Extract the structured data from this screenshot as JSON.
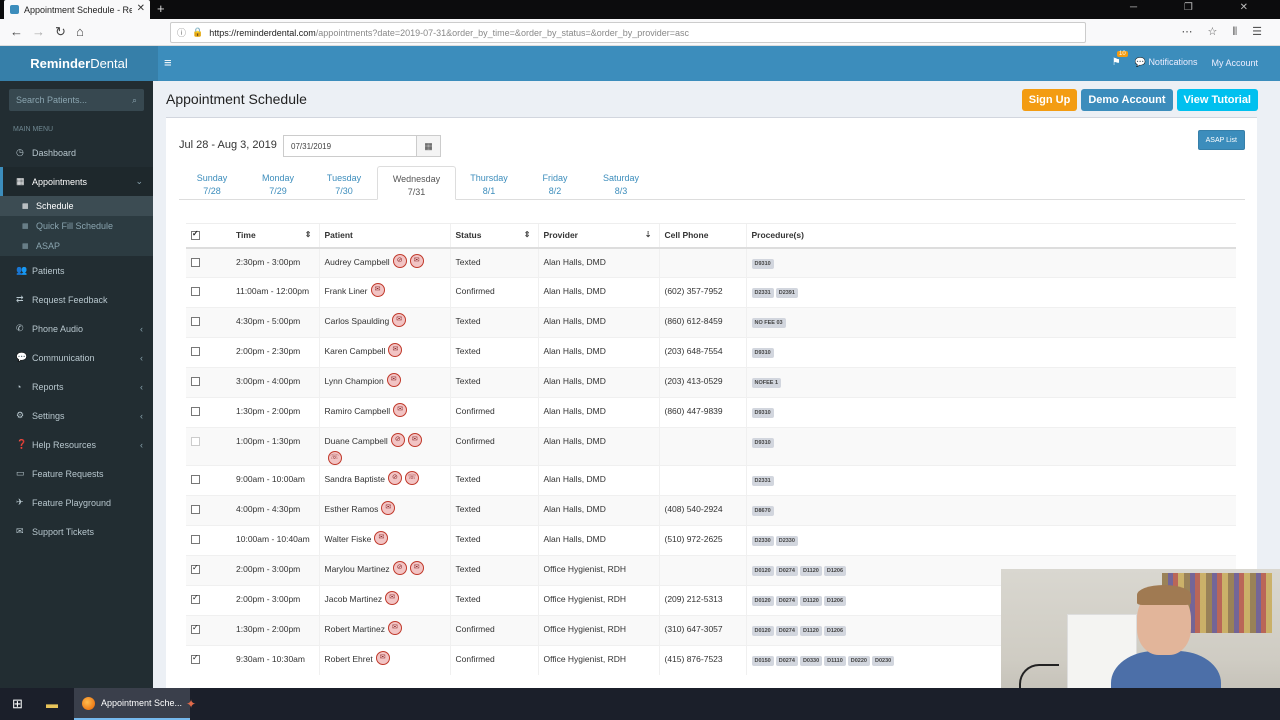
{
  "browser": {
    "tab_title": "Appointment Schedule - Reminder",
    "url_host": "https://reminderdental.com",
    "url_path": "/appointments?date=2019-07-31&order_by_time=&order_by_status=&order_by_provider=asc"
  },
  "header": {
    "logo_bold": "Reminder",
    "logo_normal": "Dental",
    "notifications": "Notifications",
    "my_account": "My Account",
    "flag_badge": "10"
  },
  "sidebar": {
    "search_placeholder": "Search Patients...",
    "main_menu": "MAIN MENU",
    "items": [
      {
        "label": "Dashboard"
      },
      {
        "label": "Appointments"
      },
      {
        "label": "Patients"
      },
      {
        "label": "Request Feedback"
      },
      {
        "label": "Phone Audio"
      },
      {
        "label": "Communication"
      },
      {
        "label": "Reports"
      },
      {
        "label": "Settings"
      },
      {
        "label": "Help Resources"
      },
      {
        "label": "Feature Requests"
      },
      {
        "label": "Feature Playground"
      },
      {
        "label": "Support Tickets"
      }
    ],
    "sub_items": [
      {
        "label": "Schedule"
      },
      {
        "label": "Quick Fill Schedule"
      },
      {
        "label": "ASAP"
      }
    ]
  },
  "main": {
    "title": "Appointment Schedule",
    "buttons": {
      "sign_up": "Sign Up",
      "demo": "Demo Account",
      "tutorial": "View Tutorial",
      "asap": "ASAP List"
    },
    "week_range": "Jul 28 - Aug 3, 2019",
    "date_value": "07/31/2019",
    "days": [
      {
        "name": "Sunday",
        "date": "7/28"
      },
      {
        "name": "Monday",
        "date": "7/29"
      },
      {
        "name": "Tuesday",
        "date": "7/30"
      },
      {
        "name": "Wednesday",
        "date": "7/31"
      },
      {
        "name": "Thursday",
        "date": "8/1"
      },
      {
        "name": "Friday",
        "date": "8/2"
      },
      {
        "name": "Saturday",
        "date": "8/3"
      }
    ],
    "columns": {
      "time": "Time",
      "patient": "Patient",
      "status": "Status",
      "provider": "Provider",
      "cell": "Cell Phone",
      "procedures": "Procedure(s)"
    },
    "rows": [
      {
        "checked": false,
        "time": "2:30pm - 3:00pm",
        "patient": "Audrey Campbell",
        "icons": [
          "no-text",
          "mail"
        ],
        "status": "Texted",
        "provider": "Alan Halls, DMD",
        "cell": "",
        "procedures": [
          "D9310"
        ]
      },
      {
        "checked": false,
        "time": "11:00am - 12:00pm",
        "patient": "Frank Liner",
        "icons": [
          "mail"
        ],
        "status": "Confirmed",
        "provider": "Alan Halls, DMD",
        "cell": "(602) 357-7952",
        "procedures": [
          "D2331",
          "D2391"
        ]
      },
      {
        "checked": false,
        "time": "4:30pm - 5:00pm",
        "patient": "Carlos Spaulding",
        "icons": [
          "mail"
        ],
        "status": "Texted",
        "provider": "Alan Halls, DMD",
        "cell": "(860) 612-8459",
        "procedures": [
          "NO FEE 03"
        ]
      },
      {
        "checked": false,
        "time": "2:00pm - 2:30pm",
        "patient": "Karen Campbell",
        "icons": [
          "mail"
        ],
        "status": "Texted",
        "provider": "Alan Halls, DMD",
        "cell": "(203) 648-7554",
        "procedures": [
          "D9310"
        ]
      },
      {
        "checked": false,
        "time": "3:00pm - 4:00pm",
        "patient": "Lynn Champion",
        "icons": [
          "mail"
        ],
        "status": "Texted",
        "provider": "Alan Halls, DMD",
        "cell": "(203) 413-0529",
        "procedures": [
          "NOFEE 1"
        ]
      },
      {
        "checked": false,
        "time": "1:30pm - 2:00pm",
        "patient": "Ramiro Campbell",
        "icons": [
          "mail"
        ],
        "status": "Confirmed",
        "provider": "Alan Halls, DMD",
        "cell": "(860) 447-9839",
        "procedures": [
          "D9310"
        ]
      },
      {
        "checked": false,
        "dim": true,
        "time": "1:00pm - 1:30pm",
        "patient": "Duane Campbell",
        "icons": [
          "no-text",
          "mail"
        ],
        "extra_icons": [
          "no-call"
        ],
        "status": "Confirmed",
        "provider": "Alan Halls, DMD",
        "cell": "",
        "procedures": [
          "D9310"
        ]
      },
      {
        "checked": false,
        "time": "9:00am - 10:00am",
        "patient": "Sandra Baptiste",
        "icons": [
          "no-text",
          "no-call"
        ],
        "status": "Texted",
        "provider": "Alan Halls, DMD",
        "cell": "",
        "procedures": [
          "D2331"
        ]
      },
      {
        "checked": false,
        "time": "4:00pm - 4:30pm",
        "patient": "Esther Ramos",
        "icons": [
          "mail"
        ],
        "status": "Texted",
        "provider": "Alan Halls, DMD",
        "cell": "(408) 540-2924",
        "procedures": [
          "D8670"
        ]
      },
      {
        "checked": false,
        "time": "10:00am - 10:40am",
        "patient": "Walter Fiske",
        "icons": [
          "mail"
        ],
        "status": "Texted",
        "provider": "Alan Halls, DMD",
        "cell": "(510) 972-2625",
        "procedures": [
          "D2330",
          "D2330"
        ]
      },
      {
        "checked": true,
        "time": "2:00pm - 3:00pm",
        "patient": "Marylou Martinez",
        "icons": [
          "no-text",
          "mail"
        ],
        "status": "Texted",
        "provider": "Office Hygienist, RDH",
        "cell": "",
        "procedures": [
          "D0120",
          "D0274",
          "D1120",
          "D1206"
        ]
      },
      {
        "checked": true,
        "time": "2:00pm - 3:00pm",
        "patient": "Jacob Martinez",
        "icons": [
          "mail"
        ],
        "status": "Texted",
        "provider": "Office Hygienist, RDH",
        "cell": "(209) 212-5313",
        "procedures": [
          "D0120",
          "D0274",
          "D1120",
          "D1206"
        ]
      },
      {
        "checked": true,
        "time": "1:30pm - 2:00pm",
        "patient": "Robert Martinez",
        "icons": [
          "mail"
        ],
        "status": "Confirmed",
        "provider": "Office Hygienist, RDH",
        "cell": "(310) 647-3057",
        "procedures": [
          "D0120",
          "D0274",
          "D1120",
          "D1206"
        ]
      },
      {
        "checked": true,
        "time": "9:30am - 10:30am",
        "patient": "Robert Ehret",
        "icons": [
          "mail"
        ],
        "status": "Confirmed",
        "provider": "Office Hygienist, RDH",
        "cell": "(415) 876-7523",
        "procedures": [
          "D0150",
          "D0274",
          "D0330",
          "D1110",
          "D0220",
          "D0230"
        ]
      }
    ]
  },
  "taskbar": {
    "active_title": "Appointment Sche..."
  }
}
